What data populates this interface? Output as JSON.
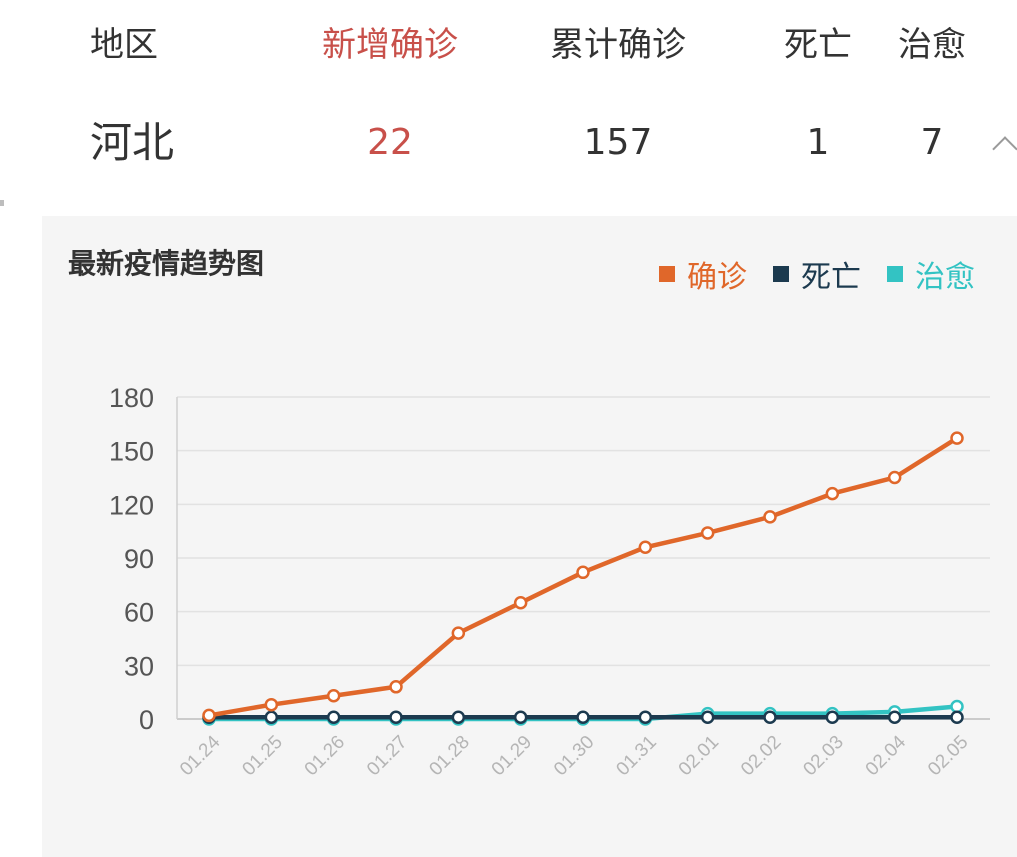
{
  "table": {
    "headers": [
      {
        "key": "region",
        "label": "地区"
      },
      {
        "key": "new",
        "label": "新增确诊"
      },
      {
        "key": "total",
        "label": "累计确诊"
      },
      {
        "key": "death",
        "label": "死亡"
      },
      {
        "key": "cured",
        "label": "治愈"
      }
    ],
    "row": {
      "region": "河北",
      "new": "22",
      "total": "157",
      "death": "1",
      "cured": "7"
    },
    "collapse_icon": "chevron-up-icon"
  },
  "chart_data": {
    "type": "line",
    "title": "最新疫情趋势图",
    "xlabel": "",
    "ylabel": "",
    "ylim": [
      0,
      180
    ],
    "yticks": [
      0,
      30,
      60,
      90,
      120,
      150,
      180
    ],
    "grid": true,
    "legend_position": "top-right",
    "categories": [
      "01.24",
      "01.25",
      "01.26",
      "01.27",
      "01.28",
      "01.29",
      "01.30",
      "01.31",
      "02.01",
      "02.02",
      "02.03",
      "02.04",
      "02.05"
    ],
    "series": [
      {
        "name": "确诊",
        "color": "#e0672a",
        "values": [
          2,
          8,
          13,
          18,
          48,
          65,
          82,
          96,
          104,
          113,
          126,
          135,
          157
        ]
      },
      {
        "name": "死亡",
        "color": "#1c3a4f",
        "values": [
          1,
          1,
          1,
          1,
          1,
          1,
          1,
          1,
          1,
          1,
          1,
          1,
          1
        ]
      },
      {
        "name": "治愈",
        "color": "#33c3c3",
        "values": [
          0,
          0,
          0,
          0,
          0,
          0,
          0,
          0,
          3,
          3,
          3,
          4,
          7
        ]
      }
    ]
  }
}
